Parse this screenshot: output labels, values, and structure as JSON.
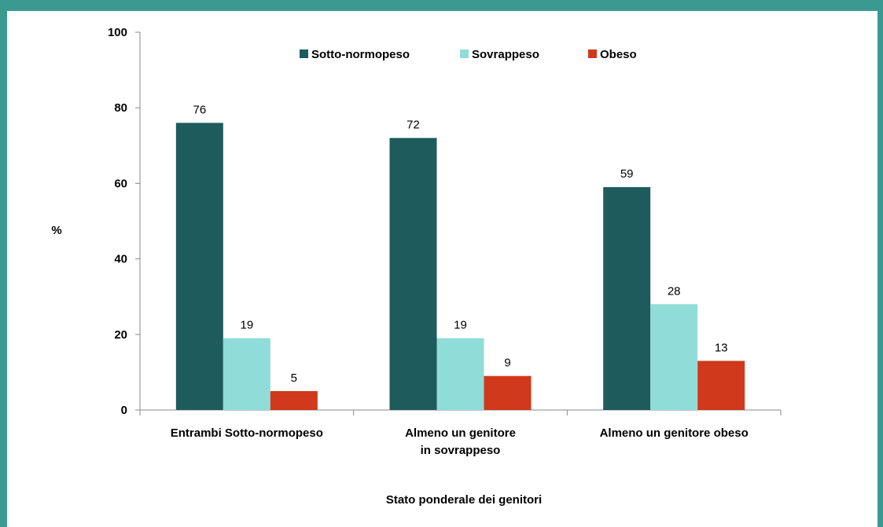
{
  "chart_data": {
    "type": "bar",
    "title": "",
    "xlabel": "Stato ponderale dei genitori",
    "ylabel": "%",
    "ylim": [
      0,
      100
    ],
    "yticks": [
      0,
      20,
      40,
      60,
      80,
      100
    ],
    "grid": false,
    "legend_position": "top",
    "categories": [
      [
        "Entrambi Sotto-normopeso"
      ],
      [
        "Almeno un genitore",
        "in sovrappeso"
      ],
      [
        "Almeno un genitore obeso"
      ]
    ],
    "series": [
      {
        "name": "Sotto-normopeso",
        "color": "#1e5b5c",
        "values": [
          76,
          72,
          59
        ]
      },
      {
        "name": "Sovrappeso",
        "color": "#8fdcd8",
        "values": [
          19,
          19,
          28
        ]
      },
      {
        "name": "Obeso",
        "color": "#d0391b",
        "values": [
          5,
          9,
          13
        ]
      }
    ]
  }
}
